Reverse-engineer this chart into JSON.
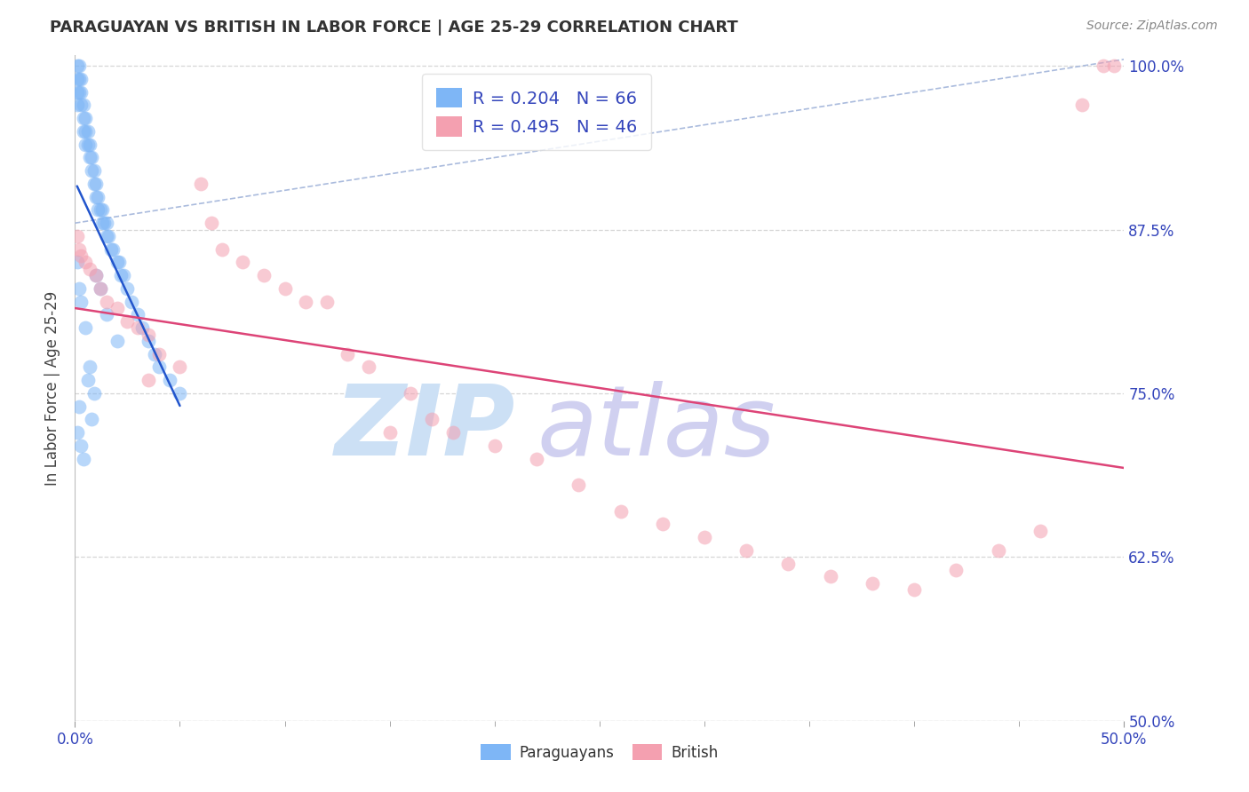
{
  "title": "PARAGUAYAN VS BRITISH IN LABOR FORCE | AGE 25-29 CORRELATION CHART",
  "source": "Source: ZipAtlas.com",
  "ylabel": "In Labor Force | Age 25-29",
  "xlim": [
    0.0,
    0.5
  ],
  "ylim": [
    0.5,
    1.008
  ],
  "xtick_positions": [
    0.0,
    0.5
  ],
  "xticklabels": [
    "0.0%",
    "50.0%"
  ],
  "ytick_positions": [
    0.5,
    0.625,
    0.75,
    0.875,
    1.0
  ],
  "yticklabels": [
    "50.0%",
    "62.5%",
    "75.0%",
    "87.5%",
    "100.0%"
  ],
  "paraguayan_color": "#7eb6f6",
  "british_color": "#f4a0b0",
  "paraguayan_line_color": "#2255cc",
  "british_line_color": "#dd4477",
  "ref_line_color": "#aabbdd",
  "legend_paraguayan_label": "R = 0.204   N = 66",
  "legend_british_label": "R = 0.495   N = 46",
  "watermark_zip_color": "#cce0f5",
  "watermark_atlas_color": "#d0d0f0",
  "background_color": "#ffffff",
  "grid_color": "#cccccc",
  "title_color": "#333333",
  "axis_label_color": "#444444",
  "tick_label_color": "#3344bb",
  "source_color": "#888888",
  "par_x": [
    0.001,
    0.001,
    0.001,
    0.001,
    0.002,
    0.002,
    0.002,
    0.003,
    0.003,
    0.003,
    0.004,
    0.004,
    0.004,
    0.005,
    0.005,
    0.005,
    0.006,
    0.006,
    0.007,
    0.007,
    0.008,
    0.008,
    0.009,
    0.009,
    0.01,
    0.01,
    0.011,
    0.011,
    0.012,
    0.013,
    0.013,
    0.014,
    0.015,
    0.015,
    0.016,
    0.017,
    0.018,
    0.02,
    0.021,
    0.022,
    0.023,
    0.025,
    0.027,
    0.03,
    0.032,
    0.035,
    0.038,
    0.04,
    0.045,
    0.05,
    0.001,
    0.002,
    0.003,
    0.005,
    0.007,
    0.009,
    0.001,
    0.002,
    0.003,
    0.004,
    0.006,
    0.008,
    0.01,
    0.012,
    0.015,
    0.02
  ],
  "par_y": [
    1.0,
    0.99,
    0.98,
    0.97,
    1.0,
    0.99,
    0.98,
    0.99,
    0.98,
    0.97,
    0.97,
    0.96,
    0.95,
    0.96,
    0.95,
    0.94,
    0.95,
    0.94,
    0.94,
    0.93,
    0.93,
    0.92,
    0.92,
    0.91,
    0.91,
    0.9,
    0.9,
    0.89,
    0.89,
    0.89,
    0.88,
    0.88,
    0.88,
    0.87,
    0.87,
    0.86,
    0.86,
    0.85,
    0.85,
    0.84,
    0.84,
    0.83,
    0.82,
    0.81,
    0.8,
    0.79,
    0.78,
    0.77,
    0.76,
    0.75,
    0.85,
    0.83,
    0.82,
    0.8,
    0.77,
    0.75,
    0.72,
    0.74,
    0.71,
    0.7,
    0.76,
    0.73,
    0.84,
    0.83,
    0.81,
    0.79
  ],
  "brit_x": [
    0.001,
    0.002,
    0.003,
    0.005,
    0.007,
    0.01,
    0.012,
    0.015,
    0.02,
    0.025,
    0.03,
    0.035,
    0.04,
    0.05,
    0.06,
    0.07,
    0.08,
    0.09,
    0.1,
    0.11,
    0.12,
    0.13,
    0.14,
    0.15,
    0.16,
    0.17,
    0.18,
    0.2,
    0.22,
    0.24,
    0.26,
    0.28,
    0.3,
    0.32,
    0.34,
    0.36,
    0.38,
    0.4,
    0.42,
    0.44,
    0.46,
    0.48,
    0.49,
    0.495,
    0.035,
    0.065
  ],
  "brit_y": [
    0.87,
    0.86,
    0.855,
    0.85,
    0.845,
    0.84,
    0.83,
    0.82,
    0.815,
    0.805,
    0.8,
    0.795,
    0.78,
    0.77,
    0.91,
    0.86,
    0.85,
    0.84,
    0.83,
    0.82,
    0.82,
    0.78,
    0.77,
    0.72,
    0.75,
    0.73,
    0.72,
    0.71,
    0.7,
    0.68,
    0.66,
    0.65,
    0.64,
    0.63,
    0.62,
    0.61,
    0.605,
    0.6,
    0.615,
    0.63,
    0.645,
    0.97,
    1.0,
    1.0,
    0.76,
    0.88
  ]
}
